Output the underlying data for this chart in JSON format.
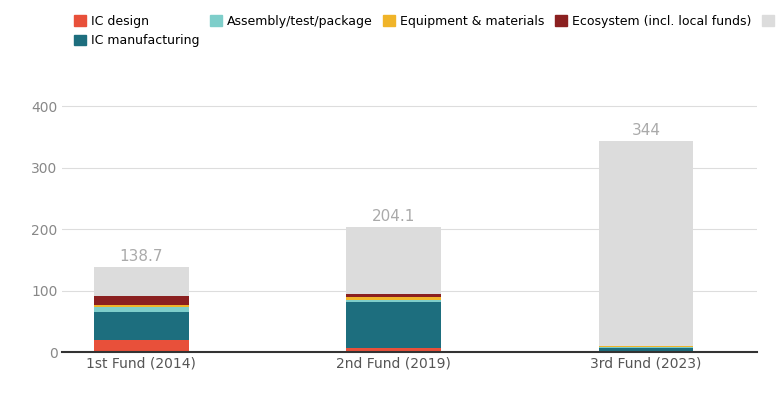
{
  "categories": [
    "1st Fund (2014)",
    "2nd Fund (2019)",
    "3rd Fund (2023)"
  ],
  "totals": [
    138.7,
    204.1,
    344
  ],
  "segments": {
    "IC design": {
      "values": [
        20,
        7,
        2
      ],
      "color": "#E8503A"
    },
    "IC manufacturing": {
      "values": [
        45,
        75,
        5
      ],
      "color": "#1D6E7E"
    },
    "Assembly/test/package": {
      "values": [
        8,
        3,
        1
      ],
      "color": "#7ECECA"
    },
    "Equipment & materials": {
      "values": [
        3,
        4,
        1
      ],
      "color": "#F0B429"
    },
    "Ecosystem (incl. local funds)": {
      "values": [
        15,
        5,
        1
      ],
      "color": "#8B2020"
    },
    "Unrecorded, or not yet invested": {
      "values": [
        47.7,
        110.1,
        334
      ],
      "color": "#DCDCDC"
    }
  },
  "ylim": [
    0,
    430
  ],
  "yticks": [
    0,
    100,
    200,
    300,
    400
  ],
  "bar_width": 0.6,
  "label_color": "#AAAAAA",
  "label_fontsize": 11,
  "tick_fontsize": 10,
  "legend_fontsize": 9,
  "background_color": "#FFFFFF",
  "grid_color": "#DDDDDD",
  "x_positions": [
    0,
    1.6,
    3.2
  ],
  "xlim": [
    -0.5,
    3.9
  ]
}
